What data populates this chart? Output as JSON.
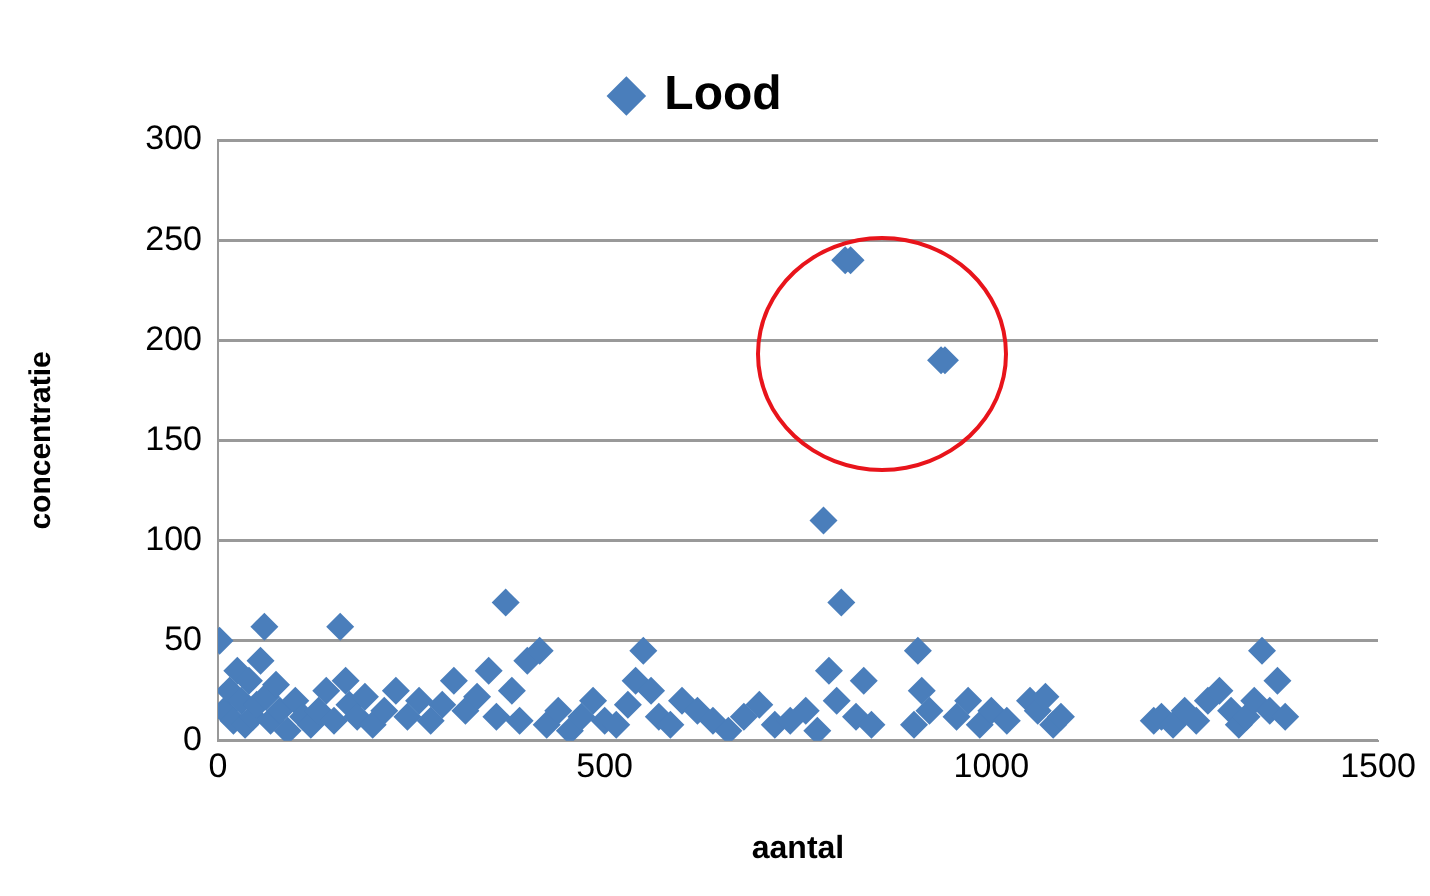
{
  "chart_data": {
    "type": "scatter",
    "xlabel": "aantal",
    "ylabel": "concentratie",
    "xlim": [
      0,
      1500
    ],
    "xticks": [
      0,
      500,
      1000,
      1500
    ],
    "ylim": [
      0,
      300
    ],
    "yticks": [
      0,
      50,
      100,
      150,
      200,
      250,
      300
    ],
    "grid": "y",
    "legend": "top",
    "marker": "diamond",
    "series": [
      {
        "name": "Lood",
        "color": "#4a7ebb",
        "x": [
          2,
          8,
          15,
          20,
          25,
          30,
          35,
          40,
          45,
          50,
          55,
          60,
          62,
          68,
          75,
          80,
          90,
          100,
          110,
          120,
          130,
          140,
          150,
          158,
          165,
          170,
          180,
          190,
          200,
          215,
          230,
          245,
          260,
          275,
          290,
          305,
          320,
          335,
          350,
          360,
          372,
          380,
          390,
          400,
          416,
          425,
          440,
          455,
          470,
          485,
          500,
          515,
          530,
          540,
          550,
          560,
          570,
          585,
          600,
          620,
          640,
          660,
          680,
          700,
          720,
          740,
          760,
          775,
          783,
          790,
          800,
          806,
          811,
          818,
          825,
          835,
          845,
          900,
          905,
          910,
          920,
          935,
          940,
          955,
          970,
          985,
          1000,
          1020,
          1050,
          1060,
          1070,
          1080,
          1090,
          1210,
          1220,
          1235,
          1250,
          1265,
          1280,
          1295,
          1310,
          1320,
          1330,
          1340,
          1350,
          1360,
          1370,
          1380
        ],
        "values": [
          50,
          15,
          25,
          10,
          35,
          20,
          8,
          30,
          12,
          18,
          40,
          57,
          22,
          10,
          28,
          15,
          5,
          20,
          12,
          8,
          15,
          25,
          10,
          57,
          30,
          18,
          12,
          22,
          8,
          15,
          25,
          12,
          20,
          10,
          18,
          30,
          15,
          22,
          35,
          12,
          69,
          25,
          10,
          40,
          45,
          8,
          15,
          5,
          12,
          20,
          10,
          8,
          18,
          30,
          45,
          25,
          12,
          8,
          20,
          15,
          10,
          5,
          12,
          18,
          8,
          10,
          15,
          5,
          110,
          35,
          20,
          69,
          240,
          240,
          12,
          30,
          8,
          8,
          45,
          25,
          15,
          190,
          190,
          12,
          20,
          8,
          15,
          10,
          20,
          15,
          22,
          8,
          12,
          10,
          12,
          8,
          15,
          10,
          20,
          25,
          15,
          8,
          12,
          20,
          45,
          15,
          30,
          12
        ]
      }
    ]
  }
}
